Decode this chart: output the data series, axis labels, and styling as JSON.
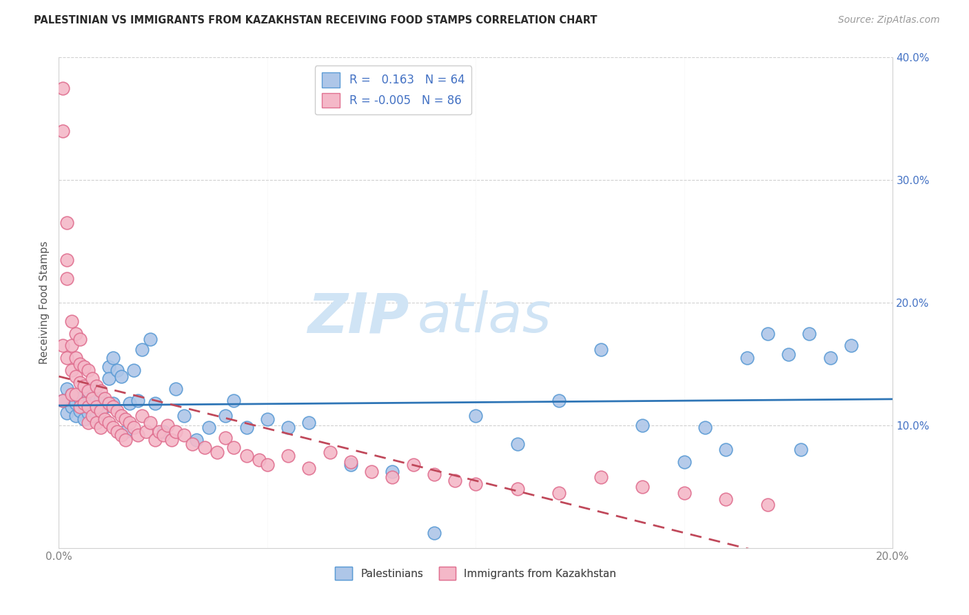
{
  "title": "PALESTINIAN VS IMMIGRANTS FROM KAZAKHSTAN RECEIVING FOOD STAMPS CORRELATION CHART",
  "source": "Source: ZipAtlas.com",
  "ylabel": "Receiving Food Stamps",
  "xlim": [
    0.0,
    0.2
  ],
  "ylim": [
    0.0,
    0.4
  ],
  "xticks": [
    0.0,
    0.05,
    0.1,
    0.15,
    0.2
  ],
  "yticks": [
    0.0,
    0.1,
    0.2,
    0.3,
    0.4
  ],
  "series1_name": "Palestinians",
  "series1_face_color": "#aec6e8",
  "series1_edge_color": "#5b9bd5",
  "series1_line_color": "#2e75b6",
  "series1_R": 0.163,
  "series1_N": 64,
  "series2_name": "Immigrants from Kazakhstan",
  "series2_face_color": "#f4b8c8",
  "series2_edge_color": "#e07090",
  "series2_line_color": "#c0485a",
  "series2_R": -0.005,
  "series2_N": 86,
  "watermark_zip": "ZIP",
  "watermark_atlas": "atlas",
  "watermark_color": "#d0e4f5",
  "grid_color": "#d0d0d0",
  "tick_color_y": "#4472c4",
  "tick_color_x": "#808080",
  "background_color": "#ffffff",
  "palestinians_x": [
    0.001,
    0.002,
    0.002,
    0.003,
    0.003,
    0.004,
    0.004,
    0.005,
    0.005,
    0.006,
    0.006,
    0.007,
    0.007,
    0.007,
    0.008,
    0.008,
    0.008,
    0.009,
    0.009,
    0.01,
    0.01,
    0.011,
    0.012,
    0.012,
    0.013,
    0.013,
    0.014,
    0.015,
    0.016,
    0.017,
    0.018,
    0.019,
    0.02,
    0.022,
    0.023,
    0.025,
    0.028,
    0.03,
    0.033,
    0.036,
    0.04,
    0.042,
    0.045,
    0.05,
    0.055,
    0.06,
    0.07,
    0.08,
    0.09,
    0.1,
    0.11,
    0.12,
    0.13,
    0.14,
    0.15,
    0.155,
    0.16,
    0.165,
    0.17,
    0.175,
    0.178,
    0.18,
    0.185,
    0.19
  ],
  "palestinians_y": [
    0.12,
    0.11,
    0.13,
    0.115,
    0.125,
    0.108,
    0.118,
    0.112,
    0.122,
    0.105,
    0.115,
    0.11,
    0.125,
    0.118,
    0.13,
    0.115,
    0.112,
    0.12,
    0.108,
    0.118,
    0.122,
    0.115,
    0.148,
    0.138,
    0.155,
    0.118,
    0.145,
    0.14,
    0.095,
    0.118,
    0.145,
    0.12,
    0.162,
    0.17,
    0.118,
    0.095,
    0.13,
    0.108,
    0.088,
    0.098,
    0.108,
    0.12,
    0.098,
    0.105,
    0.098,
    0.102,
    0.068,
    0.062,
    0.012,
    0.108,
    0.085,
    0.12,
    0.162,
    0.1,
    0.07,
    0.098,
    0.08,
    0.155,
    0.175,
    0.158,
    0.08,
    0.175,
    0.155,
    0.165
  ],
  "kazakhstan_x": [
    0.001,
    0.001,
    0.001,
    0.001,
    0.002,
    0.002,
    0.002,
    0.002,
    0.003,
    0.003,
    0.003,
    0.003,
    0.004,
    0.004,
    0.004,
    0.004,
    0.005,
    0.005,
    0.005,
    0.005,
    0.006,
    0.006,
    0.006,
    0.007,
    0.007,
    0.007,
    0.007,
    0.008,
    0.008,
    0.008,
    0.009,
    0.009,
    0.009,
    0.01,
    0.01,
    0.01,
    0.011,
    0.011,
    0.012,
    0.012,
    0.013,
    0.013,
    0.014,
    0.014,
    0.015,
    0.015,
    0.016,
    0.016,
    0.017,
    0.018,
    0.019,
    0.02,
    0.021,
    0.022,
    0.023,
    0.024,
    0.025,
    0.026,
    0.027,
    0.028,
    0.03,
    0.032,
    0.035,
    0.038,
    0.04,
    0.042,
    0.045,
    0.048,
    0.05,
    0.055,
    0.06,
    0.065,
    0.07,
    0.075,
    0.08,
    0.085,
    0.09,
    0.095,
    0.1,
    0.11,
    0.12,
    0.13,
    0.14,
    0.15,
    0.16,
    0.17
  ],
  "kazakhstan_y": [
    0.375,
    0.34,
    0.165,
    0.12,
    0.265,
    0.235,
    0.22,
    0.155,
    0.185,
    0.165,
    0.145,
    0.125,
    0.175,
    0.155,
    0.14,
    0.125,
    0.17,
    0.15,
    0.135,
    0.115,
    0.148,
    0.132,
    0.118,
    0.145,
    0.128,
    0.115,
    0.102,
    0.138,
    0.122,
    0.108,
    0.132,
    0.115,
    0.102,
    0.128,
    0.112,
    0.098,
    0.122,
    0.105,
    0.118,
    0.102,
    0.115,
    0.098,
    0.112,
    0.095,
    0.108,
    0.092,
    0.105,
    0.088,
    0.102,
    0.098,
    0.092,
    0.108,
    0.095,
    0.102,
    0.088,
    0.095,
    0.092,
    0.1,
    0.088,
    0.095,
    0.092,
    0.085,
    0.082,
    0.078,
    0.09,
    0.082,
    0.075,
    0.072,
    0.068,
    0.075,
    0.065,
    0.078,
    0.07,
    0.062,
    0.058,
    0.068,
    0.06,
    0.055,
    0.052,
    0.048,
    0.045,
    0.058,
    0.05,
    0.045,
    0.04,
    0.035
  ]
}
